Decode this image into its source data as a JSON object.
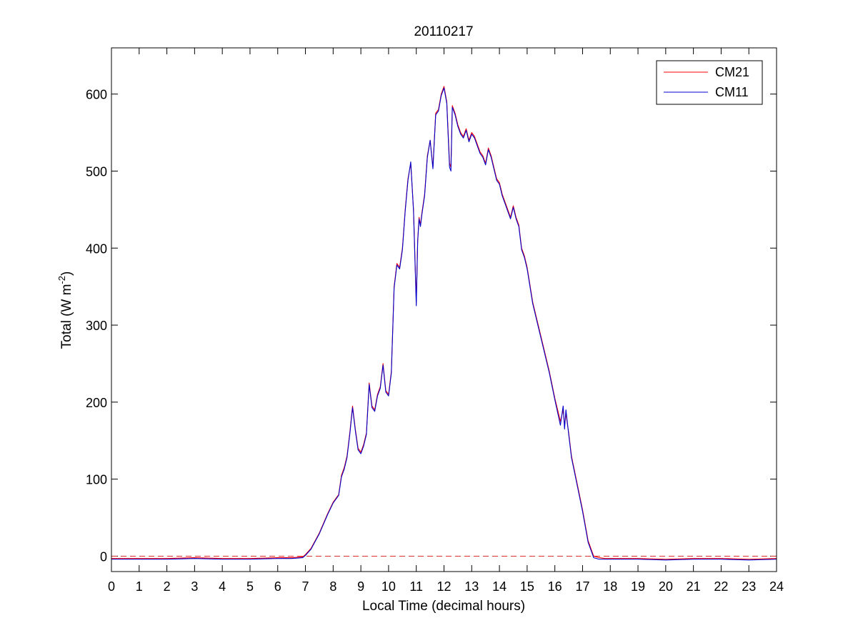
{
  "chart_data": {
    "type": "line",
    "title": "20110217",
    "xlabel": "Local Time (decimal hours)",
    "ylabel_main": "Total (W m",
    "ylabel_sup": "-2",
    "ylabel_close": ")",
    "xlim": [
      0,
      24
    ],
    "ylim": [
      -20,
      660
    ],
    "xticks": [
      0,
      1,
      2,
      3,
      4,
      5,
      6,
      7,
      8,
      9,
      10,
      11,
      12,
      13,
      14,
      15,
      16,
      17,
      18,
      19,
      20,
      21,
      22,
      23,
      24
    ],
    "yticks": [
      0,
      100,
      200,
      300,
      400,
      500,
      600
    ],
    "grid": false,
    "legend_position": "top-right",
    "reference_line": {
      "y": 0,
      "style": "dashed",
      "color": "#e03030"
    },
    "series": [
      {
        "name": "CM21",
        "color": "#ff0000",
        "x": [
          0,
          1,
          2,
          3,
          4,
          5,
          6,
          6.5,
          6.9,
          7.0,
          7.2,
          7.5,
          7.8,
          8.0,
          8.2,
          8.3,
          8.4,
          8.5,
          8.6,
          8.7,
          8.8,
          8.9,
          9.0,
          9.1,
          9.2,
          9.3,
          9.4,
          9.5,
          9.6,
          9.7,
          9.8,
          9.9,
          10.0,
          10.1,
          10.2,
          10.3,
          10.4,
          10.5,
          10.6,
          10.7,
          10.8,
          10.9,
          11.0,
          11.05,
          11.1,
          11.15,
          11.2,
          11.3,
          11.4,
          11.5,
          11.6,
          11.7,
          11.8,
          11.9,
          12.0,
          12.1,
          12.2,
          12.25,
          12.3,
          12.4,
          12.5,
          12.6,
          12.7,
          12.8,
          12.9,
          13.0,
          13.1,
          13.2,
          13.3,
          13.4,
          13.5,
          13.6,
          13.7,
          13.8,
          13.9,
          14.0,
          14.1,
          14.2,
          14.3,
          14.4,
          14.5,
          14.6,
          14.7,
          14.8,
          14.9,
          15.0,
          15.2,
          15.4,
          15.6,
          15.8,
          16.0,
          16.2,
          16.3,
          16.35,
          16.4,
          16.5,
          16.6,
          16.8,
          17.0,
          17.2,
          17.4,
          17.6,
          17.8,
          18.0,
          19,
          20,
          21,
          22,
          23,
          24
        ],
        "y": [
          -3,
          -3,
          -3,
          -2,
          -3,
          -3,
          -2,
          -2,
          -1,
          2,
          10,
          30,
          55,
          70,
          80,
          105,
          115,
          130,
          160,
          195,
          165,
          140,
          135,
          145,
          160,
          225,
          195,
          190,
          210,
          220,
          250,
          215,
          210,
          240,
          350,
          380,
          375,
          400,
          450,
          490,
          510,
          450,
          330,
          410,
          440,
          430,
          445,
          470,
          520,
          540,
          505,
          575,
          580,
          600,
          610,
          590,
          510,
          505,
          585,
          575,
          560,
          550,
          545,
          555,
          540,
          550,
          545,
          535,
          525,
          520,
          510,
          530,
          520,
          505,
          490,
          485,
          470,
          460,
          450,
          440,
          455,
          440,
          430,
          400,
          390,
          375,
          330,
          300,
          270,
          240,
          205,
          175,
          190,
          170,
          185,
          160,
          130,
          95,
          60,
          20,
          0,
          -2,
          -3,
          -3,
          -3,
          -4,
          -3,
          -3,
          -4,
          -3
        ]
      },
      {
        "name": "CM11",
        "color": "#0000cc",
        "x": [
          0,
          1,
          2,
          3,
          4,
          5,
          6,
          6.5,
          6.9,
          7.0,
          7.2,
          7.5,
          7.8,
          8.0,
          8.2,
          8.3,
          8.4,
          8.5,
          8.6,
          8.7,
          8.8,
          8.9,
          9.0,
          9.1,
          9.2,
          9.3,
          9.4,
          9.5,
          9.6,
          9.7,
          9.8,
          9.9,
          10.0,
          10.1,
          10.2,
          10.3,
          10.4,
          10.5,
          10.6,
          10.7,
          10.8,
          10.9,
          11.0,
          11.05,
          11.1,
          11.15,
          11.2,
          11.3,
          11.4,
          11.5,
          11.6,
          11.7,
          11.8,
          11.9,
          12.0,
          12.1,
          12.2,
          12.25,
          12.3,
          12.4,
          12.5,
          12.6,
          12.7,
          12.8,
          12.9,
          13.0,
          13.1,
          13.2,
          13.3,
          13.4,
          13.5,
          13.6,
          13.7,
          13.8,
          13.9,
          14.0,
          14.1,
          14.2,
          14.3,
          14.4,
          14.5,
          14.6,
          14.7,
          14.8,
          14.9,
          15.0,
          15.2,
          15.4,
          15.6,
          15.8,
          16.0,
          16.2,
          16.3,
          16.35,
          16.4,
          16.5,
          16.6,
          16.8,
          17.0,
          17.2,
          17.4,
          17.6,
          17.8,
          18.0,
          19,
          20,
          21,
          22,
          23,
          24
        ],
        "y": [
          -4,
          -4,
          -4,
          -3,
          -4,
          -4,
          -3,
          -3,
          -2,
          1,
          9,
          29,
          54,
          69,
          79,
          103,
          113,
          128,
          158,
          193,
          163,
          138,
          133,
          143,
          158,
          223,
          193,
          188,
          208,
          218,
          248,
          213,
          208,
          238,
          348,
          378,
          373,
          398,
          448,
          488,
          512,
          448,
          325,
          408,
          438,
          428,
          443,
          468,
          518,
          540,
          503,
          573,
          578,
          598,
          608,
          588,
          505,
          500,
          583,
          573,
          558,
          548,
          543,
          553,
          538,
          548,
          543,
          533,
          523,
          518,
          508,
          528,
          518,
          503,
          488,
          483,
          468,
          458,
          448,
          438,
          453,
          438,
          428,
          398,
          388,
          373,
          328,
          298,
          268,
          238,
          203,
          170,
          195,
          165,
          190,
          158,
          128,
          93,
          58,
          18,
          -2,
          -4,
          -4,
          -4,
          -4,
          -5,
          -4,
          -4,
          -5,
          -4
        ]
      }
    ]
  }
}
